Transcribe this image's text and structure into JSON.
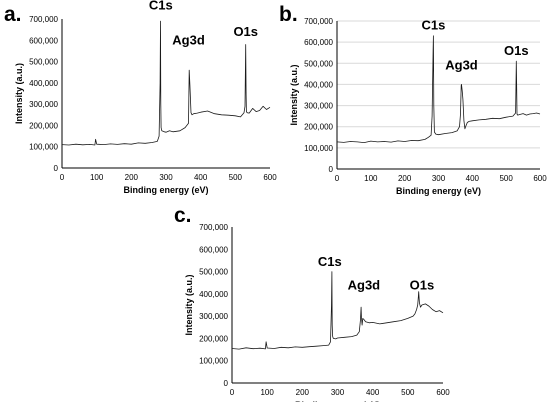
{
  "chart_data": [
    {
      "panel_label": "a.",
      "type": "line",
      "xlabel": "Binding energy (eV)",
      "ylabel": "Intensity (a.u.)",
      "xlim": [
        0,
        600
      ],
      "ylim": [
        0,
        700000
      ],
      "xticks": [
        "0",
        "100",
        "200",
        "300",
        "400",
        "500",
        "600"
      ],
      "yticks": [
        "0",
        "100,000",
        "200,000",
        "300,000",
        "400,000",
        "500,000",
        "600,000",
        "700,000"
      ],
      "grid": false,
      "annotations": [
        {
          "text": "C1s",
          "x": 285,
          "y": 745000
        },
        {
          "text": "Ag3d",
          "x": 365,
          "y": 580000
        },
        {
          "text": "O1s",
          "x": 530,
          "y": 620000
        }
      ],
      "series": [
        {
          "x": [
            0,
            20,
            40,
            60,
            80,
            95,
            97,
            100,
            120,
            140,
            160,
            180,
            200,
            220,
            240,
            260,
            275,
            280,
            283,
            284,
            285,
            286,
            288,
            295,
            300,
            310,
            320,
            340,
            355,
            365,
            367,
            368,
            369,
            372,
            375,
            380,
            390,
            400,
            420,
            440,
            460,
            480,
            500,
            515,
            525,
            528,
            530,
            531,
            532,
            534,
            540,
            550,
            560,
            570,
            580,
            590,
            600
          ],
          "y": [
            110000,
            108000,
            112000,
            109000,
            111000,
            108000,
            135000,
            112000,
            110000,
            113000,
            111000,
            114000,
            112000,
            118000,
            116000,
            120000,
            125000,
            150000,
            400000,
            690000,
            300000,
            190000,
            175000,
            170000,
            168000,
            175000,
            170000,
            175000,
            190000,
            210000,
            460000,
            420000,
            390000,
            260000,
            250000,
            255000,
            258000,
            262000,
            268000,
            255000,
            250000,
            248000,
            245000,
            240000,
            260000,
            290000,
            580000,
            350000,
            265000,
            260000,
            258000,
            280000,
            265000,
            270000,
            290000,
            275000,
            285000
          ]
        }
      ]
    },
    {
      "panel_label": "b.",
      "type": "line",
      "xlabel": "Binding energy (eV)",
      "ylabel": "Intensity (a.u.)",
      "xlim": [
        0,
        600
      ],
      "ylim": [
        0,
        700000
      ],
      "xticks": [
        "0",
        "100",
        "200",
        "300",
        "400",
        "500",
        "600"
      ],
      "yticks": [
        "0",
        "100,000",
        "200,000",
        "300,000",
        "400,000",
        "500,000",
        "600,000",
        "700,000"
      ],
      "grid": true,
      "annotations": [
        {
          "text": "C1s",
          "x": 285,
          "y": 660000
        },
        {
          "text": "Ag3d",
          "x": 368,
          "y": 470000
        },
        {
          "text": "O1s",
          "x": 530,
          "y": 540000
        }
      ],
      "series": [
        {
          "x": [
            0,
            20,
            40,
            60,
            80,
            100,
            120,
            140,
            160,
            180,
            200,
            220,
            240,
            260,
            270,
            278,
            281,
            284,
            285,
            286,
            288,
            292,
            300,
            320,
            340,
            355,
            362,
            365,
            367,
            368,
            370,
            372,
            375,
            378,
            380,
            385,
            390,
            400,
            420,
            440,
            460,
            480,
            500,
            520,
            528,
            530,
            531,
            532,
            534,
            540,
            550,
            560,
            570,
            580,
            590,
            600
          ],
          "y": [
            128000,
            126000,
            130000,
            128000,
            125000,
            132000,
            128000,
            130000,
            127000,
            133000,
            130000,
            135000,
            134000,
            140000,
            150000,
            160000,
            250000,
            560000,
            630000,
            300000,
            175000,
            165000,
            162000,
            168000,
            172000,
            180000,
            200000,
            260000,
            395000,
            400000,
            370000,
            330000,
            230000,
            190000,
            200000,
            220000,
            225000,
            228000,
            232000,
            235000,
            240000,
            238000,
            245000,
            250000,
            265000,
            510000,
            380000,
            260000,
            255000,
            258000,
            262000,
            255000,
            260000,
            262000,
            265000,
            260000
          ]
        }
      ]
    },
    {
      "panel_label": "c.",
      "type": "line",
      "xlabel": "Binding energy (eV)",
      "ylabel": "Intensity (a.u.)",
      "xlim": [
        0,
        600
      ],
      "ylim": [
        0,
        700000
      ],
      "xticks": [
        "0",
        "100",
        "200",
        "300",
        "400",
        "500",
        "600"
      ],
      "yticks": [
        "0",
        "100,000",
        "200,000",
        "300,000",
        "400,000",
        "500,000",
        "600,000",
        "700,000"
      ],
      "grid": false,
      "annotations": [
        {
          "text": "C1s",
          "x": 278,
          "y": 525000
        },
        {
          "text": "Ag3d",
          "x": 375,
          "y": 420000
        },
        {
          "text": "O1s",
          "x": 540,
          "y": 420000
        }
      ],
      "series": [
        {
          "x": [
            0,
            20,
            40,
            60,
            80,
            95,
            97,
            100,
            120,
            140,
            160,
            180,
            200,
            220,
            240,
            260,
            275,
            280,
            283,
            284,
            285,
            286,
            288,
            295,
            300,
            320,
            340,
            355,
            362,
            365,
            367,
            368,
            370,
            372,
            375,
            380,
            390,
            400,
            420,
            440,
            460,
            480,
            500,
            515,
            520,
            525,
            528,
            530,
            531,
            533,
            536,
            540,
            550,
            560,
            570,
            580,
            590,
            600
          ],
          "y": [
            155000,
            152000,
            158000,
            154000,
            156000,
            153000,
            185000,
            157000,
            155000,
            160000,
            158000,
            162000,
            160000,
            163000,
            165000,
            168000,
            170000,
            185000,
            350000,
            500000,
            260000,
            210000,
            200000,
            198000,
            202000,
            205000,
            208000,
            215000,
            230000,
            280000,
            340000,
            300000,
            260000,
            290000,
            285000,
            275000,
            270000,
            272000,
            265000,
            270000,
            275000,
            280000,
            290000,
            300000,
            310000,
            330000,
            350000,
            390000,
            410000,
            360000,
            340000,
            350000,
            355000,
            345000,
            330000,
            320000,
            325000,
            315000
          ]
        }
      ]
    }
  ]
}
